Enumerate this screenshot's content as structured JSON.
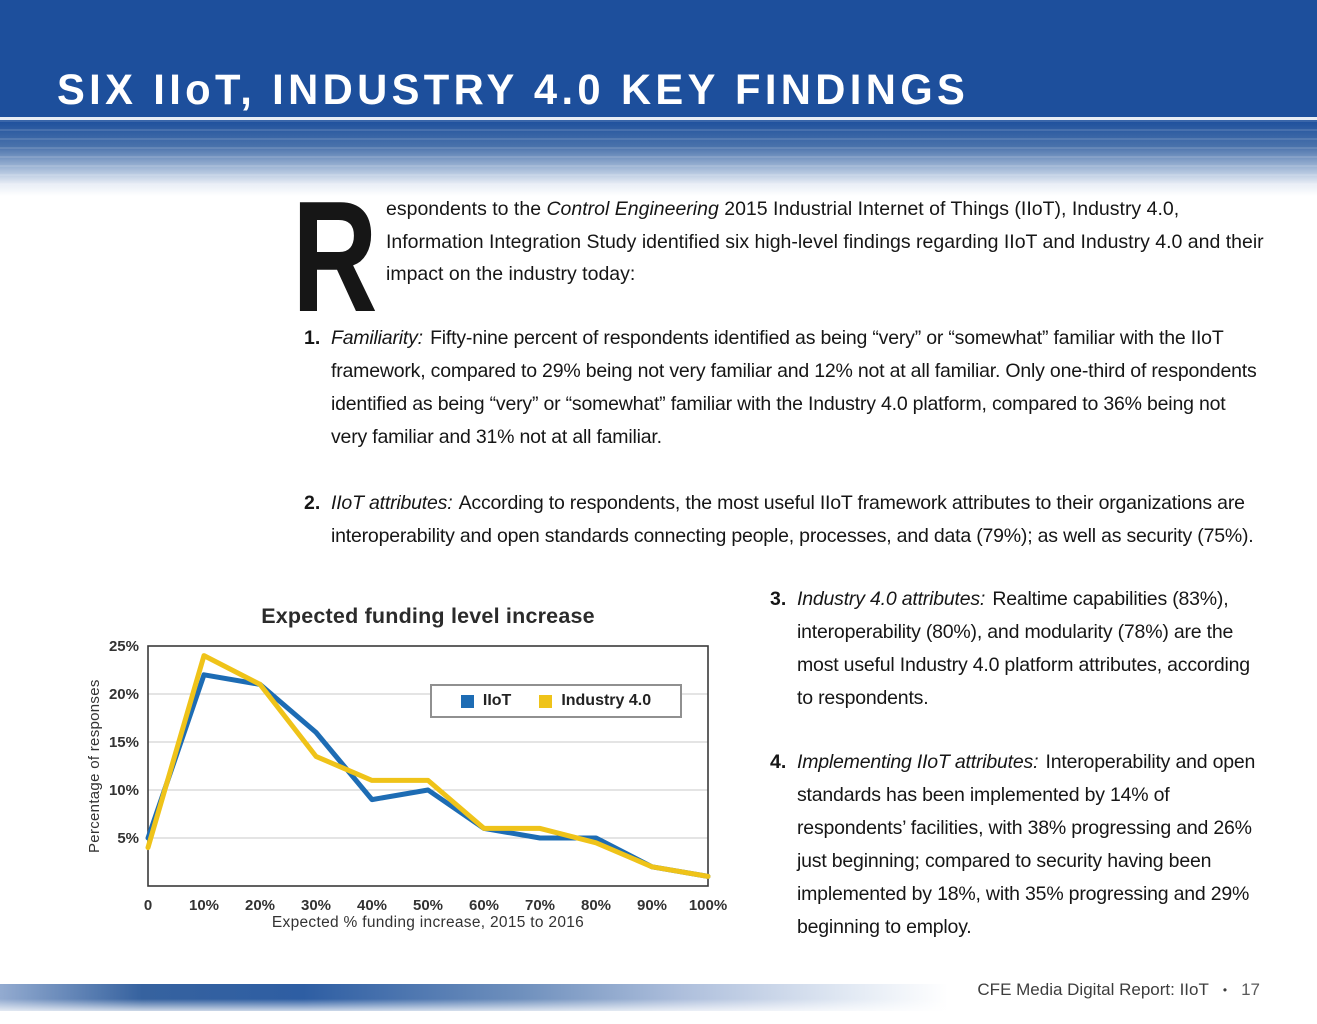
{
  "page": {
    "title": "SIX IIoT, INDUSTRY 4.0 KEY FINDINGS"
  },
  "intro": {
    "dropcap": "R",
    "before": "espondents to the ",
    "journal": "Control Engineering",
    "after": " 2015 Industrial Internet of Things (IIoT), Industry 4.0, Information Integration Study identified six high-level findings regarding IIoT and Industry 4.0 and their impact on the industry today:"
  },
  "findings": [
    {
      "number": "1.",
      "lead": "Familiarity:",
      "text": "Fifty-nine percent of respondents identified as being “very” or “somewhat” familiar with the IIoT framework, compared to 29% being not very familiar and 12% not at all familiar. Only one-third of respondents identified as being “very” or “somewhat” familiar with the Industry 4.0 platform, compared to 36% being not very familiar and 31% not at all familiar."
    },
    {
      "number": "2.",
      "lead": "IIoT attributes:",
      "text": "According to respondents, the most useful IIoT framework attributes to their organizations are interoperability and open standards connecting people, processes, and data (79%); as well as security (75%)."
    },
    {
      "number": "3.",
      "lead": "Industry 4.0 attributes:",
      "text": "Realtime capabilities (83%), interoperability (80%), and modularity (78%) are the most useful Industry 4.0 platform attributes, according to respondents."
    },
    {
      "number": "4.",
      "lead": "Implementing IIoT attributes:",
      "text": "Interoperability and open standards has been implemented by 14% of respondents’ facilities, with 38% progressing and 26% just beginning; compared to security having been implemented by 18%, with 35% progressing and 29% beginning to employ."
    }
  ],
  "footer": {
    "text": "CFE Media Digital Report: IIoT",
    "bullet": "•",
    "page": "17"
  },
  "chart_data": {
    "type": "line",
    "title": "Expected funding level increase",
    "xlabel": "Expected % funding increase, 2015 to 2016",
    "ylabel": "Percentage of responses",
    "x": [
      0,
      10,
      20,
      30,
      40,
      50,
      60,
      70,
      80,
      90,
      100
    ],
    "x_labels": [
      "0",
      "10%",
      "20%",
      "30%",
      "40%",
      "50%",
      "60%",
      "70%",
      "80%",
      "90%",
      "100%"
    ],
    "ylim": [
      0,
      25
    ],
    "yticks": [
      5,
      10,
      15,
      20,
      25
    ],
    "ytick_labels": [
      "5%",
      "10%",
      "15%",
      "20%",
      "25%"
    ],
    "grid": true,
    "legend_position": "inside-top-right",
    "series": [
      {
        "name": "IIoT",
        "color": "#1d6cb4",
        "values": [
          5,
          22,
          21,
          16,
          9,
          10,
          6,
          5,
          5,
          2,
          1
        ]
      },
      {
        "name": "Industry 4.0",
        "color": "#efc319",
        "values": [
          4,
          24,
          21,
          13.5,
          11,
          11,
          6,
          6,
          4.5,
          2,
          1
        ]
      }
    ]
  }
}
